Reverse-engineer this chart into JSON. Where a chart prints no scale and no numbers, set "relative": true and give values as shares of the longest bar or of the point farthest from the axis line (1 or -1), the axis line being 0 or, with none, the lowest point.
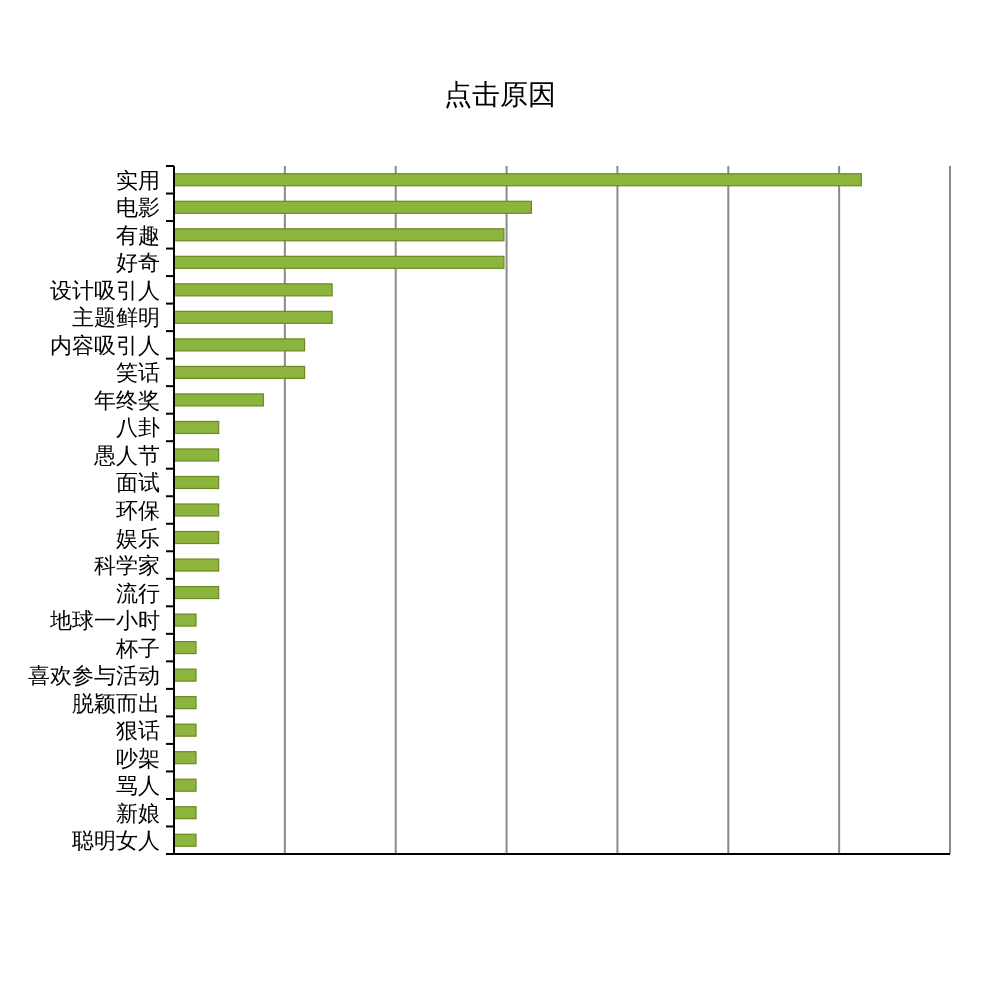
{
  "chart_data": {
    "type": "bar",
    "orientation": "horizontal",
    "relative": true,
    "title": "点击原因",
    "categories": [
      "实用",
      "电影",
      "有趣",
      "好奇",
      "设计吸引人",
      "主题鲜明",
      "内容吸引人",
      "笑话",
      "年终奖",
      "八卦",
      "愚人节",
      "面试",
      "环保",
      "娱乐",
      "科学家",
      "流行",
      "地球一小时",
      "杯子",
      "喜欢参与活动",
      "脱颖而出",
      "狠话",
      "吵架",
      "骂人",
      "新娘",
      "聪明女人"
    ],
    "values": [
      1,
      0.52,
      0.48,
      0.48,
      0.23,
      0.23,
      0.19,
      0.19,
      0.13,
      0.065,
      0.065,
      0.065,
      0.065,
      0.065,
      0.065,
      0.065,
      0.032,
      0.032,
      0.032,
      0.032,
      0.032,
      0.032,
      0.032,
      0.032,
      0.032
    ],
    "color": "#8db43c",
    "grid": "x"
  }
}
